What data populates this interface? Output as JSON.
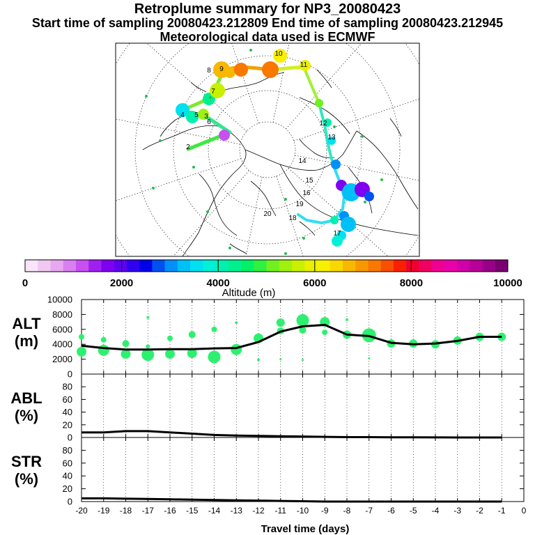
{
  "header": {
    "title": "Retroplume summary for NP3_20080423",
    "sampling_line": "Start time of sampling 20080423.212809     End time of sampling 20080423.212945",
    "met_line": "Meteorological data used is ECMWF"
  },
  "colorbar": {
    "label": "Altitude (m)",
    "tick_labels": [
      "0",
      "2000",
      "4000",
      "6000",
      "8000",
      "10000"
    ],
    "colors": [
      "#f8e6f8",
      "#f0c8f0",
      "#e8a8f0",
      "#d880f0",
      "#c850f0",
      "#a020f0",
      "#8000f0",
      "#6000f0",
      "#3000f0",
      "#0000e8",
      "#0050f0",
      "#0090f8",
      "#00c0f8",
      "#00e0f0",
      "#00f0d8",
      "#00f0b0",
      "#00f090",
      "#00f068",
      "#30f040",
      "#70f020",
      "#a0f010",
      "#c8f000",
      "#e8f000",
      "#f8f000",
      "#f8d800",
      "#f8b800",
      "#f89800",
      "#f87800",
      "#f85000",
      "#f82000",
      "#f00030",
      "#f00060",
      "#f00090",
      "#e800a8",
      "#d000a8",
      "#b80098",
      "#980088",
      "#780070"
    ]
  },
  "map": {
    "trajectory_labels": [
      "2",
      "3",
      "4",
      "5",
      "6",
      "7",
      "8",
      "9",
      "10",
      "11",
      "12",
      "13",
      "14",
      "15",
      "16",
      "17",
      "18",
      "19",
      "20"
    ]
  },
  "chart_data": [
    {
      "type": "line",
      "panel": "ALT",
      "ylabel_lines": [
        "ALT",
        "(m)"
      ],
      "x": [
        -20,
        -19,
        -18,
        -17,
        -16,
        -15,
        -14,
        -13,
        -12,
        -11,
        -10,
        -9,
        -8,
        -7,
        -6,
        -5,
        -4,
        -3,
        -2,
        -1
      ],
      "values": [
        3800,
        3500,
        3300,
        3300,
        3350,
        3350,
        3450,
        3500,
        4300,
        5700,
        6400,
        6600,
        5300,
        5100,
        4200,
        4000,
        4100,
        4450,
        5000,
        5000
      ],
      "ylim": [
        0,
        10000
      ],
      "ytick_labels": [
        "0",
        "2000",
        "4000",
        "6000",
        "8000",
        "10000"
      ],
      "scatter_points": [
        {
          "x": -20,
          "y": 3000,
          "s": 7
        },
        {
          "x": -20,
          "y": 5000,
          "s": 4
        },
        {
          "x": -19,
          "y": 3200,
          "s": 8
        },
        {
          "x": -19,
          "y": 4600,
          "s": 4
        },
        {
          "x": -18,
          "y": 2700,
          "s": 7
        },
        {
          "x": -18,
          "y": 4100,
          "s": 5
        },
        {
          "x": -17,
          "y": 2600,
          "s": 9
        },
        {
          "x": -17,
          "y": 3700,
          "s": 3
        },
        {
          "x": -17,
          "y": 7600,
          "s": 2
        },
        {
          "x": -16,
          "y": 2700,
          "s": 7
        },
        {
          "x": -16,
          "y": 4800,
          "s": 4
        },
        {
          "x": -15,
          "y": 2800,
          "s": 7
        },
        {
          "x": -15,
          "y": 5300,
          "s": 5
        },
        {
          "x": -14,
          "y": 2300,
          "s": 9
        },
        {
          "x": -14,
          "y": 6000,
          "s": 4
        },
        {
          "x": -13,
          "y": 3300,
          "s": 8
        },
        {
          "x": -13,
          "y": 6900,
          "s": 2
        },
        {
          "x": -12,
          "y": 4800,
          "s": 7
        },
        {
          "x": -12,
          "y": 1900,
          "s": 2
        },
        {
          "x": -11,
          "y": 6900,
          "s": 6
        },
        {
          "x": -11,
          "y": 5800,
          "s": 5
        },
        {
          "x": -11,
          "y": 2000,
          "s": 1.5
        },
        {
          "x": -10,
          "y": 7200,
          "s": 9
        },
        {
          "x": -10,
          "y": 5900,
          "s": 5
        },
        {
          "x": -10,
          "y": 1900,
          "s": 1.5
        },
        {
          "x": -9,
          "y": 7000,
          "s": 7
        },
        {
          "x": -9,
          "y": 5600,
          "s": 4
        },
        {
          "x": -8,
          "y": 5300,
          "s": 6
        },
        {
          "x": -8,
          "y": 7300,
          "s": 2
        },
        {
          "x": -7,
          "y": 5200,
          "s": 10
        },
        {
          "x": -7,
          "y": 2100,
          "s": 1.5
        },
        {
          "x": -6,
          "y": 4100,
          "s": 6
        },
        {
          "x": -5,
          "y": 4100,
          "s": 6
        },
        {
          "x": -4,
          "y": 4000,
          "s": 6
        },
        {
          "x": -3,
          "y": 4500,
          "s": 6
        },
        {
          "x": -2,
          "y": 5000,
          "s": 6
        },
        {
          "x": -1,
          "y": 5000,
          "s": 6
        }
      ]
    },
    {
      "type": "line",
      "panel": "ABL",
      "ylabel_lines": [
        "ABL",
        "(%)"
      ],
      "x": [
        -20,
        -19,
        -18,
        -17,
        -16,
        -15,
        -14,
        -13,
        -12,
        -11,
        -10,
        -9,
        -8,
        -7,
        -6,
        -5,
        -4,
        -3,
        -2,
        -1
      ],
      "values": [
        8,
        8,
        10,
        10,
        8,
        6,
        4,
        3,
        2.5,
        2,
        1.5,
        1,
        0.5,
        0.5,
        0.3,
        0.2,
        0.1,
        0,
        0,
        0
      ],
      "ylim": [
        0,
        100
      ],
      "ytick_labels": [
        "0",
        "20",
        "40",
        "60",
        "80"
      ]
    },
    {
      "type": "line",
      "panel": "STR",
      "ylabel_lines": [
        "STR",
        "(%)"
      ],
      "x": [
        -20,
        -19,
        -18,
        -17,
        -16,
        -15,
        -14,
        -13,
        -12,
        -11,
        -10,
        -9,
        -8,
        -7,
        -6,
        -5,
        -4,
        -3,
        -2,
        -1
      ],
      "values": [
        5,
        5,
        4.5,
        4,
        3.5,
        3,
        2.5,
        2,
        1.5,
        1,
        0.5,
        0,
        0,
        0,
        0,
        0,
        0,
        0,
        0,
        0
      ],
      "ylim": [
        0,
        100
      ],
      "ytick_labels": [
        "0",
        "20",
        "40",
        "60",
        "80"
      ],
      "xlabel": "Travel time (days)",
      "xtick_labels": [
        "-20",
        "-19",
        "-18",
        "-17",
        "-16",
        "-15",
        "-14",
        "-13",
        "-12",
        "-11",
        "-10",
        "-9",
        "-8",
        "-7",
        "-6",
        "-5",
        "-4",
        "-3",
        "-2",
        "-1",
        "0"
      ]
    }
  ]
}
